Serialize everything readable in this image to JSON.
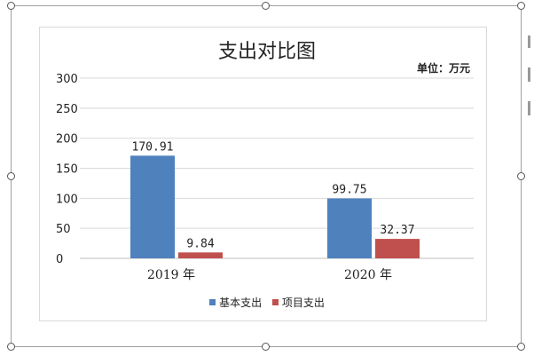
{
  "chart_data": {
    "type": "bar",
    "title": "支出对比图",
    "unit_note": "单位：万元",
    "categories": [
      "2019 年",
      "2020 年"
    ],
    "series": [
      {
        "name": "基本支出",
        "values": [
          170.91,
          99.75
        ],
        "labels": [
          "170.91",
          "99.75"
        ],
        "color": "#4f81bd"
      },
      {
        "name": "项目支出",
        "values": [
          9.84,
          32.37
        ],
        "labels": [
          "9.84",
          "32.37"
        ],
        "color": "#c0504d"
      }
    ],
    "ylim": [
      0,
      300
    ],
    "yticks": [
      0,
      50,
      100,
      150,
      200,
      250,
      300
    ],
    "grid": true,
    "legend_position": "bottom"
  }
}
